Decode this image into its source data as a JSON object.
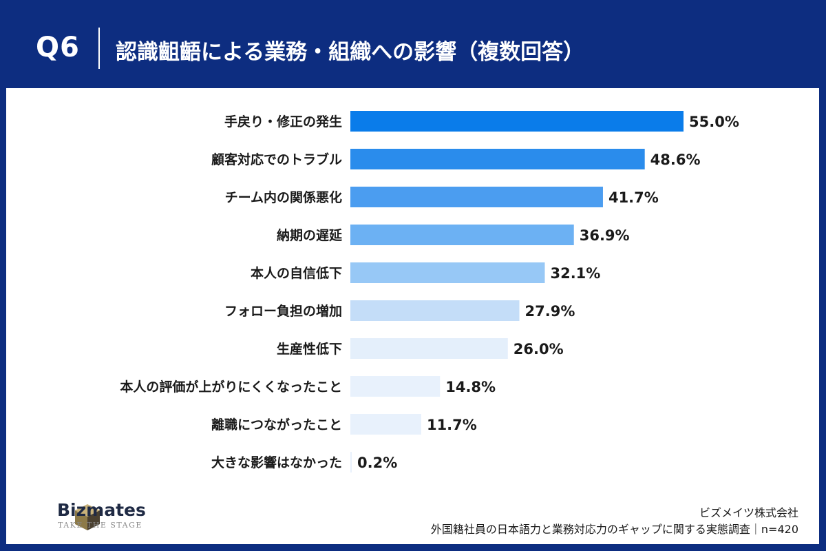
{
  "header": {
    "q_label": "Q6",
    "title": "認識齟齬による業務・組織への影響（複数回答）"
  },
  "chart_data": {
    "type": "bar",
    "orientation": "horizontal",
    "categories": [
      "手戻り・修正の発生",
      "顧客対応でのトラブル",
      "チーム内の関係悪化",
      "納期の遅延",
      "本人の自信低下",
      "フォロー負担の増加",
      "生産性低下",
      "本人の評価が上がりにくくなったこと",
      "離職につながったこと",
      "大きな影響はなかった"
    ],
    "values": [
      55.0,
      48.6,
      41.7,
      36.9,
      32.1,
      27.9,
      26.0,
      14.8,
      11.7,
      0.2
    ],
    "value_labels": [
      "55.0%",
      "48.6%",
      "41.7%",
      "36.9%",
      "32.1%",
      "27.9%",
      "26.0%",
      "14.8%",
      "11.7%",
      "0.2%"
    ],
    "colors": [
      "#0a7cea",
      "#2a8cec",
      "#4b9df0",
      "#6cb1f3",
      "#97c8f6",
      "#c4ddf8",
      "#e4effb",
      "#e8f1fc",
      "#e8f1fc",
      "#e8f1fc"
    ],
    "xlim": [
      0,
      55
    ],
    "grid": false,
    "legend": "none"
  },
  "footer": {
    "company": "ビズメイツ株式会社",
    "source": "外国籍社員の日本語力と業務対応力のギャップに関する実態調査｜n=420"
  },
  "logo": {
    "name": "Bizmates",
    "tagline": "TAKE THE STAGE",
    "colors": [
      "#c9b27a",
      "#8d7a48",
      "#4a4030"
    ]
  }
}
